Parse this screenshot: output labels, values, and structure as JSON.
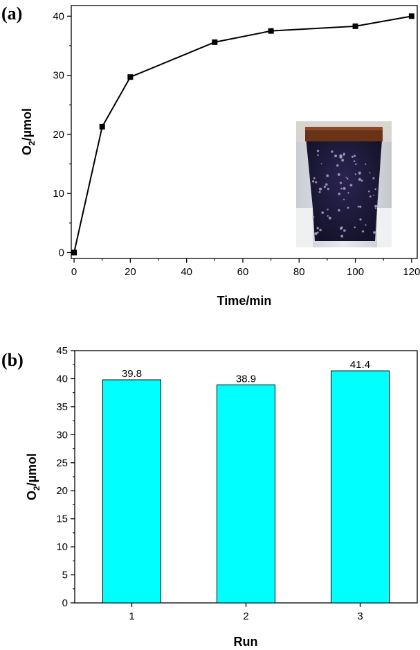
{
  "chart_data": [
    {
      "panel_label": "(a)",
      "type": "line",
      "xlabel": "Time/min",
      "ylabel": {
        "main": "O",
        "sub": "2",
        "rest": "/µmol"
      },
      "x": [
        0,
        10,
        20,
        50,
        70,
        100,
        120
      ],
      "y": [
        0,
        21.3,
        29.7,
        35.6,
        37.5,
        38.3,
        40.0
      ],
      "xlim": [
        -1,
        122
      ],
      "ylim": [
        -1,
        41.8
      ],
      "xticks": [
        0,
        20,
        40,
        60,
        80,
        100,
        120
      ],
      "yticks": [
        0,
        10,
        20,
        30,
        40
      ],
      "marker": "square",
      "line_color": "#000000",
      "inset": "photo of a glass vessel containing dark liquid with bubbles"
    },
    {
      "panel_label": "(b)",
      "type": "bar",
      "xlabel": "Run",
      "ylabel": {
        "main": "O",
        "sub": "2",
        "rest": "/µmol"
      },
      "categories": [
        "1",
        "2",
        "3"
      ],
      "values": [
        39.8,
        38.9,
        41.4
      ],
      "data_labels": [
        "39.8",
        "38.9",
        "41.4"
      ],
      "ylim": [
        0,
        45
      ],
      "yticks": [
        0,
        5,
        10,
        15,
        20,
        25,
        30,
        35,
        40,
        45
      ],
      "bar_color": "#00ffff"
    }
  ]
}
